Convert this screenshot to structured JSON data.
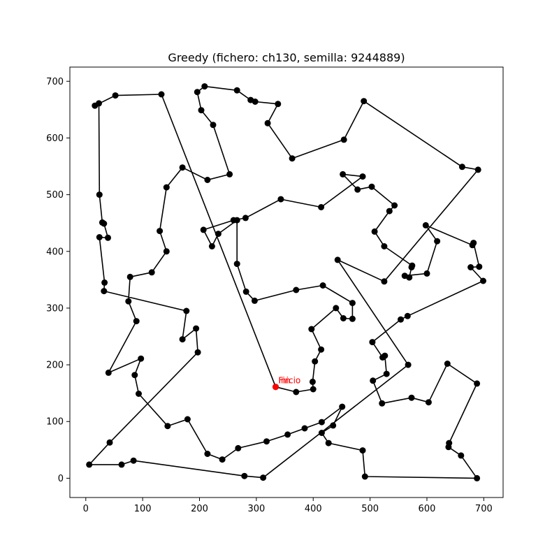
{
  "chart_data": {
    "type": "line",
    "title": "Greedy (fichero: ch130, semilla: 9244889)",
    "xlabel": "",
    "ylabel": "",
    "xlim": [
      -28,
      734
    ],
    "ylim": [
      -34,
      725
    ],
    "xticks": [
      0,
      100,
      200,
      300,
      400,
      500,
      600,
      700
    ],
    "yticks": [
      0,
      100,
      200,
      300,
      400,
      500,
      600,
      700
    ],
    "grid": false,
    "legend": "none",
    "line_color": "#000000",
    "point_color": "#000000",
    "highlight_color": "#ff0000",
    "annotations": [
      {
        "text": "Inicio",
        "x": 334,
        "y": 161
      },
      {
        "text": "Fin",
        "x": 334,
        "y": 161
      }
    ],
    "path": [
      [
        334,
        161
      ],
      [
        370,
        152
      ],
      [
        400,
        157
      ],
      [
        399,
        170
      ],
      [
        403,
        206
      ],
      [
        414,
        227
      ],
      [
        397,
        263
      ],
      [
        440,
        300
      ],
      [
        453,
        282
      ],
      [
        469,
        281
      ],
      [
        469,
        309
      ],
      [
        417,
        340
      ],
      [
        370,
        332
      ],
      [
        297,
        313
      ],
      [
        282,
        329
      ],
      [
        266,
        378
      ],
      [
        266,
        455
      ],
      [
        233,
        431
      ],
      [
        222,
        409
      ],
      [
        207,
        438
      ],
      [
        260,
        455
      ],
      [
        281,
        459
      ],
      [
        343,
        492
      ],
      [
        414,
        478
      ],
      [
        487,
        532
      ],
      [
        452,
        536
      ],
      [
        478,
        509
      ],
      [
        503,
        514
      ],
      [
        543,
        481
      ],
      [
        534,
        471
      ],
      [
        508,
        435
      ],
      [
        525,
        409
      ],
      [
        574,
        375
      ],
      [
        573,
        372
      ],
      [
        569,
        354
      ],
      [
        561,
        357
      ],
      [
        600,
        361
      ],
      [
        618,
        418
      ],
      [
        598,
        446
      ],
      [
        680,
        411
      ],
      [
        682,
        415
      ],
      [
        692,
        373
      ],
      [
        677,
        372
      ],
      [
        699,
        348
      ],
      [
        566,
        286
      ],
      [
        554,
        280
      ],
      [
        504,
        240
      ],
      [
        522,
        213
      ],
      [
        526,
        216
      ],
      [
        529,
        184
      ],
      [
        505,
        172
      ],
      [
        521,
        132
      ],
      [
        573,
        142
      ],
      [
        603,
        134
      ],
      [
        636,
        202
      ],
      [
        688,
        167
      ],
      [
        639,
        62
      ],
      [
        638,
        55
      ],
      [
        660,
        40
      ],
      [
        688,
        0
      ],
      [
        491,
        3
      ],
      [
        487,
        49
      ],
      [
        427,
        62
      ],
      [
        415,
        80
      ],
      [
        435,
        93
      ],
      [
        451,
        126
      ],
      [
        415,
        99
      ],
      [
        385,
        88
      ],
      [
        355,
        77
      ],
      [
        318,
        65
      ],
      [
        268,
        53
      ],
      [
        240,
        33
      ],
      [
        214,
        43
      ],
      [
        179,
        104
      ],
      [
        144,
        92
      ],
      [
        93,
        149
      ],
      [
        86,
        182
      ],
      [
        97,
        211
      ],
      [
        40,
        186
      ],
      [
        89,
        277
      ],
      [
        75,
        312
      ],
      [
        78,
        355
      ],
      [
        116,
        363
      ],
      [
        142,
        400
      ],
      [
        130,
        436
      ],
      [
        142,
        513
      ],
      [
        170,
        548
      ],
      [
        214,
        526
      ],
      [
        253,
        536
      ],
      [
        224,
        623
      ],
      [
        203,
        649
      ],
      [
        196,
        681
      ],
      [
        209,
        691
      ],
      [
        266,
        684
      ],
      [
        290,
        667
      ],
      [
        298,
        664
      ],
      [
        338,
        660
      ],
      [
        320,
        626
      ],
      [
        363,
        564
      ],
      [
        454,
        597
      ],
      [
        489,
        665
      ],
      [
        662,
        549
      ],
      [
        690,
        544
      ],
      [
        525,
        347
      ],
      [
        443,
        385
      ],
      [
        567,
        200
      ],
      [
        312,
        1
      ],
      [
        279,
        4
      ],
      [
        84,
        31
      ],
      [
        63,
        24
      ],
      [
        6,
        24
      ],
      [
        42,
        63
      ],
      [
        197,
        222
      ],
      [
        194,
        264
      ],
      [
        170,
        245
      ],
      [
        177,
        295
      ],
      [
        32,
        330
      ],
      [
        33,
        345
      ],
      [
        24,
        425
      ],
      [
        39,
        424
      ],
      [
        32,
        449
      ],
      [
        29,
        451
      ],
      [
        24,
        500
      ],
      [
        23,
        661
      ],
      [
        16,
        657
      ],
      [
        52,
        675
      ],
      [
        133,
        677
      ],
      [
        334,
        161
      ]
    ]
  }
}
